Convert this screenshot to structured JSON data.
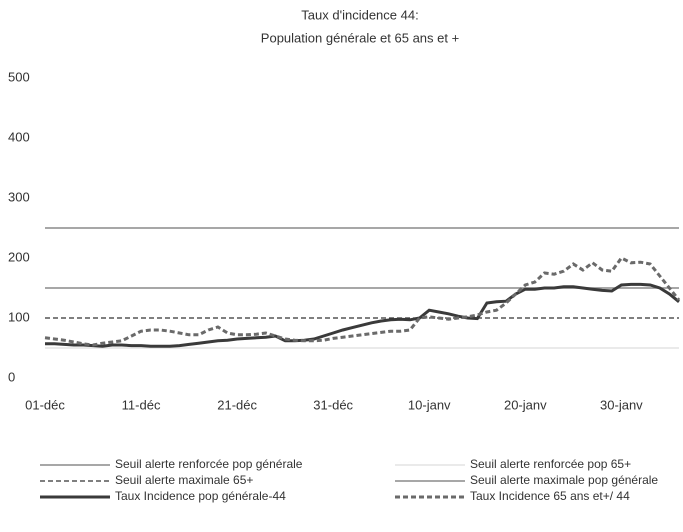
{
  "chart_data": {
    "type": "line",
    "title": "Taux d'incidence 44:",
    "subtitle": "Population générale et 65 ans et +",
    "categories": [
      "01-déc",
      null,
      null,
      null,
      null,
      null,
      null,
      null,
      null,
      null,
      "11-déc",
      null,
      null,
      null,
      null,
      null,
      null,
      null,
      null,
      null,
      "21-déc",
      null,
      null,
      null,
      null,
      null,
      null,
      null,
      null,
      null,
      "31-déc",
      null,
      null,
      null,
      null,
      null,
      null,
      null,
      null,
      null,
      "10-janv",
      null,
      null,
      null,
      null,
      null,
      null,
      null,
      null,
      null,
      "20-janv",
      null,
      null,
      null,
      null,
      null,
      null,
      null,
      null,
      null,
      "30-janv",
      null,
      null,
      null,
      null,
      null,
      null
    ],
    "ylim": [
      0,
      500
    ],
    "yticks": [
      0,
      100,
      200,
      300,
      400,
      500
    ],
    "grid": false,
    "series": [
      {
        "name": "Seuil alerte renforcée pop générale",
        "color": "#8a8a8a",
        "width": 1.5,
        "dash": false,
        "values": [
          150,
          150,
          150,
          150,
          150,
          150,
          150,
          150,
          150,
          150,
          150,
          150,
          150,
          150,
          150,
          150,
          150,
          150,
          150,
          150,
          150,
          150,
          150,
          150,
          150,
          150,
          150,
          150,
          150,
          150,
          150,
          150,
          150,
          150,
          150,
          150,
          150,
          150,
          150,
          150,
          150,
          150,
          150,
          150,
          150,
          150,
          150,
          150,
          150,
          150,
          150,
          150,
          150,
          150,
          150,
          150,
          150,
          150,
          150,
          150,
          150,
          150,
          150,
          150,
          150,
          150,
          150
        ]
      },
      {
        "name": "Seuil alerte renforcée pop 65+",
        "color": "#e4e4e4",
        "width": 1.5,
        "dash": false,
        "values": [
          50,
          50,
          50,
          50,
          50,
          50,
          50,
          50,
          50,
          50,
          50,
          50,
          50,
          50,
          50,
          50,
          50,
          50,
          50,
          50,
          50,
          50,
          50,
          50,
          50,
          50,
          50,
          50,
          50,
          50,
          50,
          50,
          50,
          50,
          50,
          50,
          50,
          50,
          50,
          50,
          50,
          50,
          50,
          50,
          50,
          50,
          50,
          50,
          50,
          50,
          50,
          50,
          50,
          50,
          50,
          50,
          50,
          50,
          50,
          50,
          50,
          50,
          50,
          50,
          50,
          50,
          50
        ]
      },
      {
        "name": "Seuil alerte maximale 65+",
        "color": "#333333",
        "width": 1.2,
        "dash": true,
        "values": [
          100,
          100,
          100,
          100,
          100,
          100,
          100,
          100,
          100,
          100,
          100,
          100,
          100,
          100,
          100,
          100,
          100,
          100,
          100,
          100,
          100,
          100,
          100,
          100,
          100,
          100,
          100,
          100,
          100,
          100,
          100,
          100,
          100,
          100,
          100,
          100,
          100,
          100,
          100,
          100,
          100,
          100,
          100,
          100,
          100,
          100,
          100,
          100,
          100,
          100,
          100,
          100,
          100,
          100,
          100,
          100,
          100,
          100,
          100,
          100,
          100,
          100,
          100,
          100,
          100,
          100,
          100
        ]
      },
      {
        "name": "Seuil alerte maximale pop générale",
        "color": "#8a8a8a",
        "width": 1.5,
        "dash": false,
        "values": [
          250,
          250,
          250,
          250,
          250,
          250,
          250,
          250,
          250,
          250,
          250,
          250,
          250,
          250,
          250,
          250,
          250,
          250,
          250,
          250,
          250,
          250,
          250,
          250,
          250,
          250,
          250,
          250,
          250,
          250,
          250,
          250,
          250,
          250,
          250,
          250,
          250,
          250,
          250,
          250,
          250,
          250,
          250,
          250,
          250,
          250,
          250,
          250,
          250,
          250,
          250,
          250,
          250,
          250,
          250,
          250,
          250,
          250,
          250,
          250,
          250,
          250,
          250,
          250,
          250,
          250,
          250
        ]
      },
      {
        "name": "Taux Incidence pop générale-44",
        "color": "#3a3a3a",
        "width": 3,
        "dash": false,
        "values": [
          57,
          57,
          56,
          55,
          55,
          54,
          53,
          55,
          55,
          54,
          54,
          53,
          53,
          53,
          54,
          56,
          58,
          60,
          62,
          63,
          65,
          66,
          67,
          68,
          70,
          62,
          62,
          63,
          65,
          70,
          75,
          80,
          84,
          88,
          92,
          95,
          97,
          98,
          97,
          100,
          113,
          110,
          107,
          103,
          100,
          99,
          125,
          127,
          128,
          140,
          148,
          148,
          150,
          150,
          152,
          152,
          150,
          148,
          146,
          145,
          155,
          156,
          156,
          155,
          150,
          140,
          127
        ]
      },
      {
        "name": "Taux Incidence 65 ans et+/ 44",
        "color": "#6a6a6a",
        "width": 3,
        "dash": true,
        "values": [
          67,
          65,
          63,
          60,
          57,
          55,
          58,
          60,
          62,
          70,
          78,
          80,
          80,
          78,
          75,
          72,
          72,
          80,
          85,
          75,
          72,
          72,
          73,
          75,
          70,
          65,
          63,
          62,
          62,
          63,
          66,
          68,
          70,
          72,
          74,
          76,
          78,
          78,
          80,
          100,
          102,
          100,
          98,
          100,
          102,
          105,
          110,
          113,
          125,
          140,
          155,
          160,
          175,
          173,
          178,
          190,
          180,
          192,
          180,
          178,
          200,
          192,
          193,
          190,
          170,
          150,
          130
        ]
      }
    ]
  }
}
